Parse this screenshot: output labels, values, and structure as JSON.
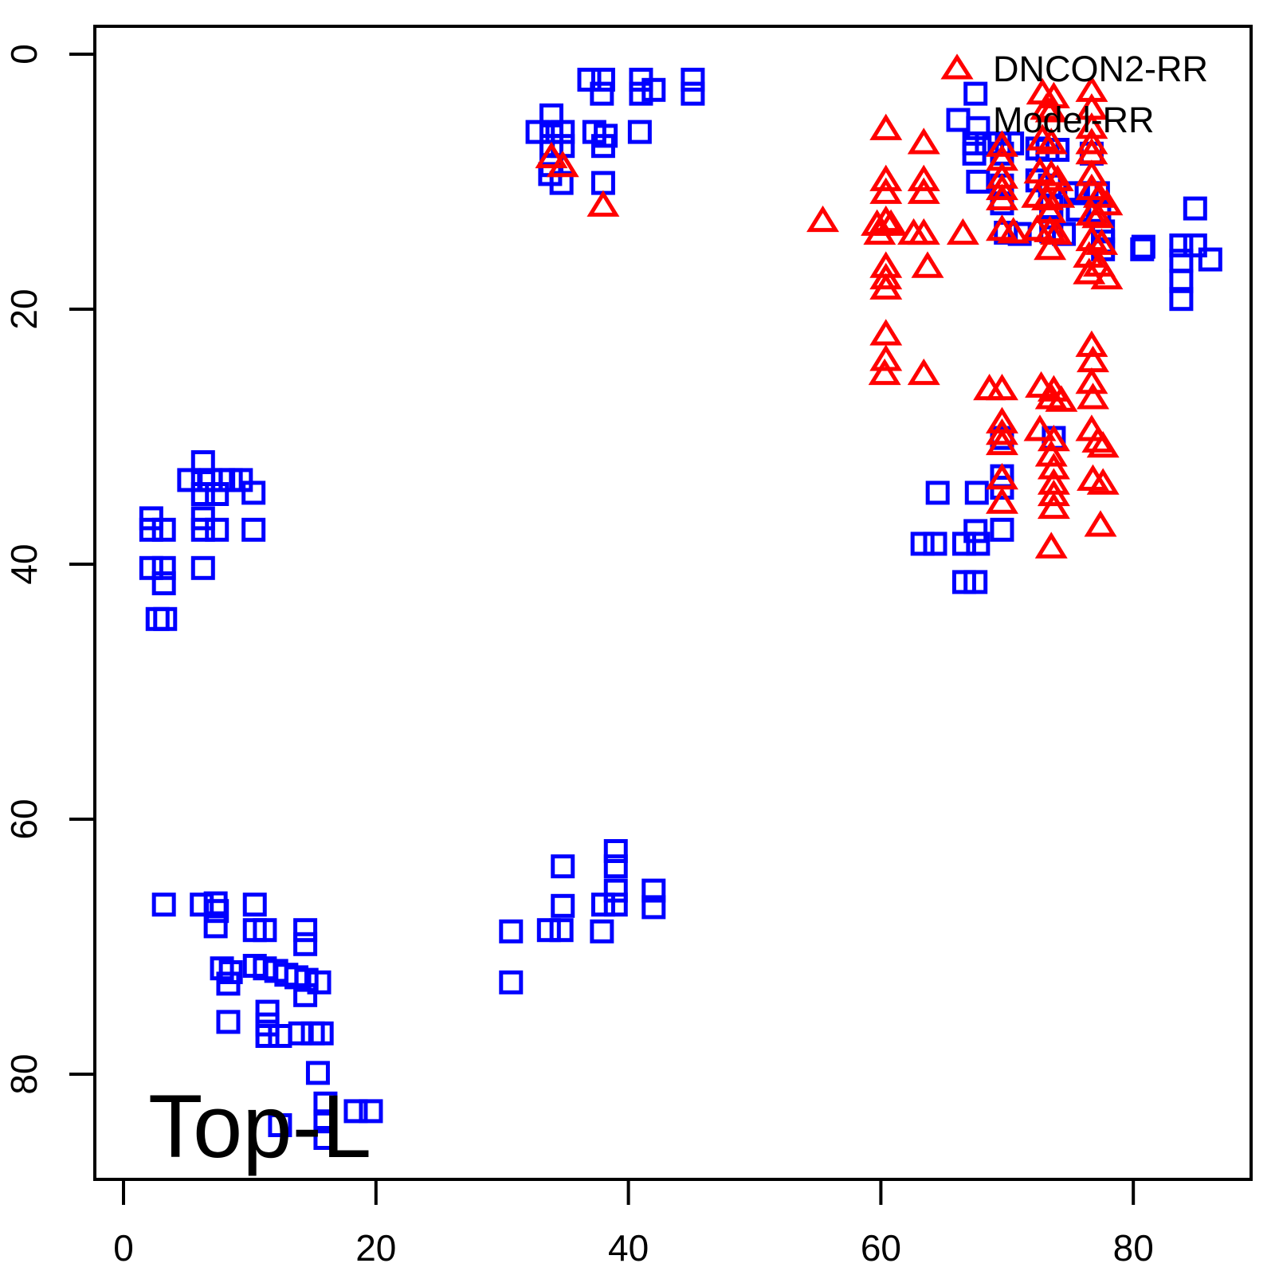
{
  "chart_data": {
    "type": "scatter",
    "title": "Top-L",
    "xlabel": "",
    "ylabel": "",
    "x_ticks": [
      0,
      20,
      40,
      60,
      80
    ],
    "y_ticks": [
      0,
      20,
      40,
      60,
      80
    ],
    "x_range": [
      -2.2,
      89.3
    ],
    "y_range": [
      -2.2,
      88.3
    ],
    "y_inverted": true,
    "grid": false,
    "background_color": "#ffffff",
    "axis_color": "#000000",
    "legend_position": "top-right",
    "legend": [
      {
        "label": "DNCON2-RR",
        "marker": "triangle",
        "color": "#ff0000"
      },
      {
        "label": "Model-RR",
        "marker": "square",
        "color": "#0000ff"
      }
    ],
    "series": [
      {
        "name": "DNCON2-RR",
        "marker": "triangle",
        "color": "#ff0000",
        "points": [
          [
            33.9,
            8.1
          ],
          [
            34.8,
            8.8
          ],
          [
            38.0,
            11.9
          ],
          [
            60.4,
            5.9
          ],
          [
            63.4,
            7.0
          ],
          [
            69.6,
            7.2
          ],
          [
            69.6,
            8.3
          ],
          [
            60.4,
            9.9
          ],
          [
            60.4,
            10.9
          ],
          [
            63.4,
            9.9
          ],
          [
            63.4,
            10.9
          ],
          [
            69.6,
            9.7
          ],
          [
            69.6,
            10.6
          ],
          [
            69.6,
            11.4
          ],
          [
            55.4,
            13.1
          ],
          [
            59.7,
            13.4
          ],
          [
            60.4,
            13.1
          ],
          [
            60.8,
            13.4
          ],
          [
            59.9,
            14.1
          ],
          [
            62.6,
            14.1
          ],
          [
            63.4,
            14.1
          ],
          [
            66.5,
            14.1
          ],
          [
            69.6,
            13.8
          ],
          [
            70.5,
            14.0
          ],
          [
            60.4,
            16.7
          ],
          [
            63.7,
            16.7
          ],
          [
            60.4,
            17.6
          ],
          [
            60.4,
            18.4
          ],
          [
            72.8,
            3.1
          ],
          [
            73.7,
            3.4
          ],
          [
            76.7,
            2.9
          ],
          [
            73.1,
            4.3
          ],
          [
            73.5,
            4.5
          ],
          [
            76.7,
            4.3
          ],
          [
            76.7,
            5.8
          ],
          [
            72.8,
            6.7
          ],
          [
            73.5,
            7.0
          ],
          [
            76.7,
            7.0
          ],
          [
            76.7,
            7.8
          ],
          [
            72.6,
            9.3
          ],
          [
            73.5,
            9.5
          ],
          [
            74.0,
            9.9
          ],
          [
            76.7,
            9.5
          ],
          [
            72.4,
            11.2
          ],
          [
            73.2,
            11.4
          ],
          [
            74.1,
            11.2
          ],
          [
            76.7,
            10.6
          ],
          [
            77.3,
            11.2
          ],
          [
            77.9,
            11.8
          ],
          [
            73.4,
            12.4
          ],
          [
            76.7,
            12.6
          ],
          [
            77.2,
            12.8
          ],
          [
            72.4,
            13.8
          ],
          [
            73.4,
            13.9
          ],
          [
            73.9,
            14.1
          ],
          [
            73.4,
            15.3
          ],
          [
            76.7,
            14.6
          ],
          [
            77.5,
            14.9
          ],
          [
            76.5,
            15.9
          ],
          [
            77.3,
            16.6
          ],
          [
            76.5,
            17.2
          ],
          [
            77.9,
            17.6
          ],
          [
            60.4,
            22.0
          ],
          [
            60.4,
            24.0
          ],
          [
            60.3,
            25.1
          ],
          [
            63.4,
            25.1
          ],
          [
            68.6,
            26.3
          ],
          [
            69.6,
            26.3
          ],
          [
            72.7,
            26.1
          ],
          [
            73.7,
            26.4
          ],
          [
            73.5,
            27.0
          ],
          [
            74.3,
            27.2
          ],
          [
            76.7,
            22.9
          ],
          [
            76.8,
            24.1
          ],
          [
            76.7,
            25.8
          ],
          [
            76.8,
            27.0
          ],
          [
            69.6,
            28.9
          ],
          [
            69.6,
            29.8
          ],
          [
            69.6,
            30.6
          ],
          [
            72.6,
            29.5
          ],
          [
            73.7,
            30.3
          ],
          [
            73.5,
            31.5
          ],
          [
            76.7,
            29.5
          ],
          [
            77.2,
            30.4
          ],
          [
            77.6,
            30.8
          ],
          [
            69.6,
            33.3
          ],
          [
            69.6,
            35.2
          ],
          [
            73.7,
            32.5
          ],
          [
            73.7,
            33.7
          ],
          [
            73.7,
            34.6
          ],
          [
            73.7,
            35.6
          ],
          [
            76.8,
            33.4
          ],
          [
            77.6,
            33.7
          ],
          [
            77.4,
            37.0
          ],
          [
            73.5,
            38.7
          ]
        ]
      },
      {
        "name": "Model-RR",
        "marker": "square",
        "color": "#0000ff",
        "points": [
          [
            36.9,
            2.0
          ],
          [
            38.0,
            2.0
          ],
          [
            37.9,
            3.1
          ],
          [
            41.0,
            2.0
          ],
          [
            41.0,
            3.1
          ],
          [
            42.0,
            2.8
          ],
          [
            45.1,
            2.0
          ],
          [
            45.1,
            3.1
          ],
          [
            33.9,
            4.8
          ],
          [
            32.8,
            6.1
          ],
          [
            33.9,
            6.1
          ],
          [
            34.8,
            6.1
          ],
          [
            33.9,
            7.2
          ],
          [
            34.8,
            7.2
          ],
          [
            37.3,
            6.1
          ],
          [
            38.2,
            6.4
          ],
          [
            38.0,
            7.2
          ],
          [
            40.9,
            6.1
          ],
          [
            33.9,
            8.7
          ],
          [
            33.8,
            9.4
          ],
          [
            34.7,
            10.1
          ],
          [
            38.0,
            10.1
          ],
          [
            67.5,
            3.1
          ],
          [
            67.7,
            5.8
          ],
          [
            67.4,
            7.0
          ],
          [
            68.4,
            7.0
          ],
          [
            69.4,
            7.0
          ],
          [
            70.4,
            7.0
          ],
          [
            67.4,
            7.8
          ],
          [
            69.6,
            7.8
          ],
          [
            67.7,
            10.0
          ],
          [
            69.6,
            10.3
          ],
          [
            69.6,
            11.7
          ],
          [
            69.9,
            14.0
          ],
          [
            72.4,
            7.4
          ],
          [
            73.2,
            7.5
          ],
          [
            74.0,
            7.5
          ],
          [
            76.7,
            7.8
          ],
          [
            72.4,
            9.9
          ],
          [
            73.4,
            10.3
          ],
          [
            75.4,
            10.9
          ],
          [
            76.3,
            10.9
          ],
          [
            77.2,
            10.9
          ],
          [
            73.5,
            12.0
          ],
          [
            73.5,
            12.8
          ],
          [
            75.6,
            12.2
          ],
          [
            77.3,
            12.3
          ],
          [
            71.0,
            14.1
          ],
          [
            73.5,
            13.9
          ],
          [
            74.5,
            14.1
          ],
          [
            77.6,
            13.9
          ],
          [
            77.6,
            14.7
          ],
          [
            77.6,
            15.3
          ],
          [
            80.7,
            15.3
          ],
          [
            84.9,
            12.1
          ],
          [
            80.8,
            15.1
          ],
          [
            83.8,
            15.0
          ],
          [
            84.9,
            15.0
          ],
          [
            83.8,
            16.2
          ],
          [
            86.1,
            16.1
          ],
          [
            83.8,
            17.8
          ],
          [
            83.8,
            19.2
          ],
          [
            69.6,
            30.1
          ],
          [
            73.7,
            30.1
          ],
          [
            69.6,
            33.1
          ],
          [
            69.6,
            34.0
          ],
          [
            64.5,
            34.4
          ],
          [
            67.6,
            34.4
          ],
          [
            67.5,
            37.4
          ],
          [
            66.6,
            38.4
          ],
          [
            67.7,
            38.4
          ],
          [
            69.6,
            37.3
          ],
          [
            63.3,
            38.4
          ],
          [
            64.3,
            38.4
          ],
          [
            66.6,
            41.4
          ],
          [
            67.5,
            41.4
          ],
          [
            6.3,
            32.0
          ],
          [
            5.2,
            33.4
          ],
          [
            6.3,
            33.4
          ],
          [
            6.9,
            33.4
          ],
          [
            7.9,
            33.4
          ],
          [
            8.5,
            33.4
          ],
          [
            9.3,
            33.4
          ],
          [
            6.3,
            34.5
          ],
          [
            7.4,
            34.5
          ],
          [
            10.3,
            34.4
          ],
          [
            2.2,
            36.4
          ],
          [
            2.2,
            37.3
          ],
          [
            3.2,
            37.3
          ],
          [
            6.3,
            36.4
          ],
          [
            6.3,
            37.3
          ],
          [
            7.4,
            37.3
          ],
          [
            10.3,
            37.3
          ],
          [
            2.2,
            40.3
          ],
          [
            3.2,
            40.3
          ],
          [
            3.2,
            41.5
          ],
          [
            6.3,
            40.3
          ],
          [
            2.7,
            44.3
          ],
          [
            3.3,
            44.3
          ],
          [
            34.8,
            63.7
          ],
          [
            39.0,
            62.5
          ],
          [
            39.0,
            63.7
          ],
          [
            34.8,
            66.8
          ],
          [
            39.0,
            65.6
          ],
          [
            38.0,
            66.7
          ],
          [
            39.0,
            66.7
          ],
          [
            42.0,
            65.6
          ],
          [
            42.0,
            66.9
          ],
          [
            30.7,
            68.8
          ],
          [
            33.7,
            68.7
          ],
          [
            34.7,
            68.7
          ],
          [
            37.9,
            68.8
          ],
          [
            30.7,
            72.8
          ],
          [
            3.2,
            66.7
          ],
          [
            6.2,
            66.7
          ],
          [
            7.3,
            66.6
          ],
          [
            7.4,
            67.2
          ],
          [
            7.3,
            68.4
          ],
          [
            10.4,
            66.7
          ],
          [
            10.4,
            68.7
          ],
          [
            11.2,
            68.7
          ],
          [
            14.4,
            68.7
          ],
          [
            14.4,
            69.8
          ],
          [
            7.8,
            71.7
          ],
          [
            8.5,
            72.0
          ],
          [
            8.3,
            72.9
          ],
          [
            10.4,
            71.5
          ],
          [
            11.2,
            71.7
          ],
          [
            12.1,
            71.9
          ],
          [
            12.9,
            72.2
          ],
          [
            13.7,
            72.4
          ],
          [
            14.5,
            72.6
          ],
          [
            15.5,
            72.8
          ],
          [
            14.4,
            73.8
          ],
          [
            11.4,
            75.1
          ],
          [
            11.4,
            76.1
          ],
          [
            8.3,
            75.9
          ],
          [
            11.4,
            77.0
          ],
          [
            12.4,
            77.0
          ],
          [
            14.0,
            76.8
          ],
          [
            15.0,
            76.8
          ],
          [
            15.7,
            76.8
          ],
          [
            15.4,
            79.9
          ],
          [
            12.4,
            84.0
          ],
          [
            16.0,
            82.3
          ],
          [
            16.0,
            83.7
          ],
          [
            16.0,
            85.0
          ],
          [
            18.4,
            82.9
          ],
          [
            19.6,
            82.9
          ]
        ]
      }
    ]
  }
}
